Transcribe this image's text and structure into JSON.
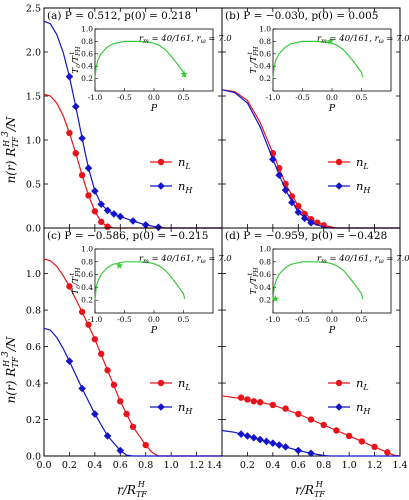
{
  "figure": {
    "ylabel": "n(r) R_TF^H 3 /N",
    "xlabel": "r/R_TF^H"
  },
  "chart_data": [
    {
      "panel": "(a)",
      "type": "line",
      "title": "P = 0.512, p(0) = 0.218",
      "xlim": [
        0,
        1.4
      ],
      "ylim": [
        0,
        2.5
      ],
      "yticks": [
        0.0,
        0.5,
        1.0,
        1.5,
        2.0,
        2.5
      ],
      "legend": "right",
      "series": [
        {
          "name": "n_L",
          "color": "#e8141c",
          "marker": "circle",
          "curve": [
            [
              0,
              1.52
            ],
            [
              0.05,
              1.5
            ],
            [
              0.1,
              1.42
            ],
            [
              0.15,
              1.28
            ],
            [
              0.2,
              1.08
            ],
            [
              0.25,
              0.85
            ],
            [
              0.3,
              0.6
            ],
            [
              0.35,
              0.37
            ],
            [
              0.4,
              0.19
            ],
            [
              0.45,
              0.07
            ],
            [
              0.5,
              0.015
            ],
            [
              0.55,
              0.0
            ],
            [
              1.4,
              0.0
            ]
          ],
          "points": [
            [
              0.2,
              1.08
            ],
            [
              0.25,
              0.85
            ],
            [
              0.3,
              0.6
            ],
            [
              0.35,
              0.37
            ],
            [
              0.4,
              0.19
            ],
            [
              0.45,
              0.07
            ],
            [
              0.5,
              0.015
            ]
          ]
        },
        {
          "name": "n_H",
          "color": "#1414c8",
          "marker": "diamond",
          "curve": [
            [
              0,
              2.35
            ],
            [
              0.05,
              2.32
            ],
            [
              0.1,
              2.2
            ],
            [
              0.15,
              2.0
            ],
            [
              0.2,
              1.72
            ],
            [
              0.25,
              1.38
            ],
            [
              0.3,
              1.02
            ],
            [
              0.35,
              0.68
            ],
            [
              0.4,
              0.42
            ],
            [
              0.45,
              0.27
            ],
            [
              0.5,
              0.2
            ],
            [
              0.55,
              0.16
            ],
            [
              0.6,
              0.13
            ],
            [
              0.7,
              0.08
            ],
            [
              0.8,
              0.035
            ],
            [
              0.9,
              0.008
            ],
            [
              0.95,
              0.0
            ],
            [
              1.4,
              0.0
            ]
          ],
          "points": [
            [
              0.2,
              1.72
            ],
            [
              0.25,
              1.38
            ],
            [
              0.3,
              1.02
            ],
            [
              0.35,
              0.68
            ],
            [
              0.4,
              0.42
            ],
            [
              0.45,
              0.27
            ],
            [
              0.5,
              0.2
            ],
            [
              0.55,
              0.16
            ],
            [
              0.6,
              0.13
            ],
            [
              0.7,
              0.08
            ],
            [
              0.8,
              0.035
            ],
            [
              0.9,
              0.008
            ]
          ]
        }
      ],
      "inset": {
        "xlabel": "P",
        "ylabel": "T_c/T_FH^t",
        "annotation": "r_m = 40/161, r_ω = 7.0",
        "xlim": [
          -1,
          1
        ],
        "ylim": [
          0,
          1
        ],
        "xticks": [
          -1.0,
          -0.5,
          0.0,
          0.5
        ],
        "yticks": [
          0.2,
          0.4,
          0.6,
          0.8,
          1.0
        ],
        "curve_color": "#3cc83c",
        "marker": [
          0.512,
          0.27
        ]
      }
    },
    {
      "panel": "(b)",
      "type": "line",
      "title": "P = −0.030, p(0) = 0.005",
      "xlim": [
        0,
        1.4
      ],
      "ylim": [
        0,
        2.5
      ],
      "legend": "right",
      "series": [
        {
          "name": "n_L",
          "color": "#e8141c",
          "marker": "circle",
          "curve": [
            [
              0,
              1.57
            ],
            [
              0.1,
              1.55
            ],
            [
              0.2,
              1.45
            ],
            [
              0.3,
              1.2
            ],
            [
              0.4,
              0.85
            ],
            [
              0.5,
              0.5
            ],
            [
              0.6,
              0.25
            ],
            [
              0.7,
              0.1
            ],
            [
              0.8,
              0.03
            ],
            [
              0.9,
              0.0
            ],
            [
              1.4,
              0.0
            ]
          ],
          "points": [
            [
              0.4,
              0.85
            ],
            [
              0.45,
              0.68
            ],
            [
              0.5,
              0.5
            ],
            [
              0.55,
              0.36
            ],
            [
              0.6,
              0.25
            ],
            [
              0.65,
              0.16
            ],
            [
              0.7,
              0.1
            ],
            [
              0.75,
              0.06
            ],
            [
              0.8,
              0.03
            ]
          ]
        },
        {
          "name": "n_H",
          "color": "#1414c8",
          "marker": "diamond",
          "curve": [
            [
              0,
              1.57
            ],
            [
              0.1,
              1.54
            ],
            [
              0.2,
              1.42
            ],
            [
              0.3,
              1.15
            ],
            [
              0.4,
              0.78
            ],
            [
              0.5,
              0.43
            ],
            [
              0.6,
              0.18
            ],
            [
              0.7,
              0.06
            ],
            [
              0.8,
              0.01
            ],
            [
              0.85,
              0.0
            ],
            [
              1.4,
              0.0
            ]
          ],
          "points": [
            [
              0.4,
              0.78
            ],
            [
              0.45,
              0.6
            ],
            [
              0.5,
              0.43
            ],
            [
              0.55,
              0.29
            ],
            [
              0.6,
              0.18
            ],
            [
              0.65,
              0.11
            ],
            [
              0.7,
              0.06
            ]
          ]
        }
      ],
      "inset": {
        "xlabel": "P",
        "ylabel": "T_c/T_FH^t",
        "annotation": "r_m = 40/161, r_ω = 7.0",
        "xlim": [
          -1,
          1
        ],
        "ylim": [
          0,
          1
        ],
        "xticks": [
          -1.0,
          -0.5,
          0.0,
          0.5
        ],
        "yticks": [
          0.2,
          0.4,
          0.6,
          0.8,
          1.0
        ],
        "curve_color": "#3cc83c",
        "marker": [
          -0.03,
          0.8
        ]
      }
    },
    {
      "panel": "(c)",
      "type": "line",
      "title": "P = −0.586, p(0) = −0.215",
      "xlim": [
        0,
        1.4
      ],
      "ylim": [
        0,
        1.25
      ],
      "yticks": [
        0.0,
        0.2,
        0.4,
        0.6,
        0.8,
        1.0
      ],
      "legend": "right",
      "series": [
        {
          "name": "n_L",
          "color": "#e8141c",
          "marker": "circle",
          "curve": [
            [
              0,
              1.08
            ],
            [
              0.05,
              1.07
            ],
            [
              0.1,
              1.04
            ],
            [
              0.15,
              0.99
            ],
            [
              0.2,
              0.93
            ],
            [
              0.3,
              0.79
            ],
            [
              0.4,
              0.64
            ],
            [
              0.5,
              0.47
            ],
            [
              0.6,
              0.3
            ],
            [
              0.7,
              0.16
            ],
            [
              0.8,
              0.06
            ],
            [
              0.85,
              0.02
            ],
            [
              0.9,
              0.0
            ],
            [
              1.4,
              0.0
            ]
          ],
          "points": [
            [
              0.2,
              0.93
            ],
            [
              0.3,
              0.79
            ],
            [
              0.35,
              0.72
            ],
            [
              0.4,
              0.64
            ],
            [
              0.45,
              0.56
            ],
            [
              0.5,
              0.47
            ],
            [
              0.55,
              0.39
            ],
            [
              0.6,
              0.3
            ],
            [
              0.65,
              0.23
            ],
            [
              0.7,
              0.16
            ],
            [
              0.8,
              0.06
            ]
          ]
        },
        {
          "name": "n_H",
          "color": "#1414c8",
          "marker": "diamond",
          "curve": [
            [
              0,
              0.7
            ],
            [
              0.05,
              0.69
            ],
            [
              0.1,
              0.65
            ],
            [
              0.15,
              0.59
            ],
            [
              0.2,
              0.52
            ],
            [
              0.3,
              0.37
            ],
            [
              0.4,
              0.23
            ],
            [
              0.5,
              0.11
            ],
            [
              0.6,
              0.03
            ],
            [
              0.65,
              0.005
            ],
            [
              0.7,
              0.0
            ],
            [
              1.4,
              0.0
            ]
          ],
          "points": [
            [
              0.2,
              0.52
            ],
            [
              0.3,
              0.37
            ],
            [
              0.4,
              0.23
            ],
            [
              0.5,
              0.11
            ],
            [
              0.6,
              0.03
            ]
          ]
        }
      ],
      "inset": {
        "xlabel": "P",
        "ylabel": "T_c/T_FH^t",
        "annotation": "r_m = 40/161, r_ω = 7.0",
        "xlim": [
          -1,
          1
        ],
        "ylim": [
          0,
          1
        ],
        "xticks": [
          -1.0,
          -0.5,
          0.0,
          0.5
        ],
        "yticks": [
          0.2,
          0.4,
          0.6,
          0.8,
          1.0
        ],
        "curve_color": "#3cc83c",
        "marker": [
          -0.586,
          0.74
        ]
      }
    },
    {
      "panel": "(d)",
      "type": "line",
      "title": "P = −0.959, p(0) = −0.428",
      "xlim": [
        0,
        1.4
      ],
      "ylim": [
        0,
        1.25
      ],
      "legend": "right",
      "series": [
        {
          "name": "n_L",
          "color": "#e8141c",
          "marker": "circle",
          "curve": [
            [
              0,
              0.33
            ],
            [
              0.2,
              0.31
            ],
            [
              0.4,
              0.28
            ],
            [
              0.6,
              0.23
            ],
            [
              0.8,
              0.17
            ],
            [
              1.0,
              0.11
            ],
            [
              1.2,
              0.05
            ],
            [
              1.3,
              0.02
            ],
            [
              1.35,
              0.005
            ],
            [
              1.4,
              0.0
            ]
          ],
          "points": [
            [
              0.15,
              0.32
            ],
            [
              0.2,
              0.31
            ],
            [
              0.25,
              0.3
            ],
            [
              0.3,
              0.295
            ],
            [
              0.4,
              0.28
            ],
            [
              0.5,
              0.26
            ],
            [
              0.6,
              0.23
            ],
            [
              0.7,
              0.2
            ],
            [
              0.8,
              0.17
            ],
            [
              0.9,
              0.14
            ],
            [
              1.0,
              0.11
            ],
            [
              1.1,
              0.08
            ],
            [
              1.2,
              0.05
            ],
            [
              1.3,
              0.02
            ]
          ]
        },
        {
          "name": "n_H",
          "color": "#1414c8",
          "marker": "diamond",
          "curve": [
            [
              0,
              0.14
            ],
            [
              0.1,
              0.13
            ],
            [
              0.2,
              0.11
            ],
            [
              0.3,
              0.09
            ],
            [
              0.4,
              0.07
            ],
            [
              0.5,
              0.05
            ],
            [
              0.6,
              0.03
            ],
            [
              0.7,
              0.015
            ],
            [
              0.8,
              0.003
            ],
            [
              0.85,
              0.0
            ],
            [
              1.4,
              0.0
            ]
          ],
          "points": [
            [
              0.15,
              0.12
            ],
            [
              0.2,
              0.11
            ],
            [
              0.25,
              0.1
            ],
            [
              0.3,
              0.09
            ],
            [
              0.35,
              0.08
            ],
            [
              0.4,
              0.07
            ],
            [
              0.45,
              0.06
            ],
            [
              0.5,
              0.05
            ],
            [
              0.6,
              0.03
            ],
            [
              0.7,
              0.015
            ]
          ]
        }
      ],
      "inset": {
        "xlabel": "P",
        "ylabel": "T_c/T_FH^t",
        "annotation": "r_m = 40/161, r_ω = 7.0",
        "xlim": [
          -1,
          1
        ],
        "ylim": [
          0,
          1
        ],
        "xticks": [
          -1.0,
          -0.5,
          0.0,
          0.5
        ],
        "yticks": [
          0.2,
          0.4,
          0.6,
          0.8,
          1.0
        ],
        "curve_color": "#3cc83c",
        "marker": [
          -0.959,
          0.22
        ]
      }
    }
  ],
  "shared_xticks": [
    0.0,
    0.2,
    0.4,
    0.6,
    0.8,
    1.0,
    1.2,
    1.4
  ],
  "inset_curve": [
    [
      -1.0,
      0.2
    ],
    [
      -0.98,
      0.4
    ],
    [
      -0.95,
      0.5
    ],
    [
      -0.9,
      0.6
    ],
    [
      -0.8,
      0.7
    ],
    [
      -0.7,
      0.76
    ],
    [
      -0.6,
      0.78
    ],
    [
      -0.5,
      0.8
    ],
    [
      -0.3,
      0.8
    ],
    [
      -0.1,
      0.79
    ],
    [
      0.0,
      0.77
    ],
    [
      0.1,
      0.73
    ],
    [
      0.2,
      0.66
    ],
    [
      0.3,
      0.55
    ],
    [
      0.4,
      0.43
    ],
    [
      0.5,
      0.3
    ],
    [
      0.52,
      0.22
    ]
  ]
}
